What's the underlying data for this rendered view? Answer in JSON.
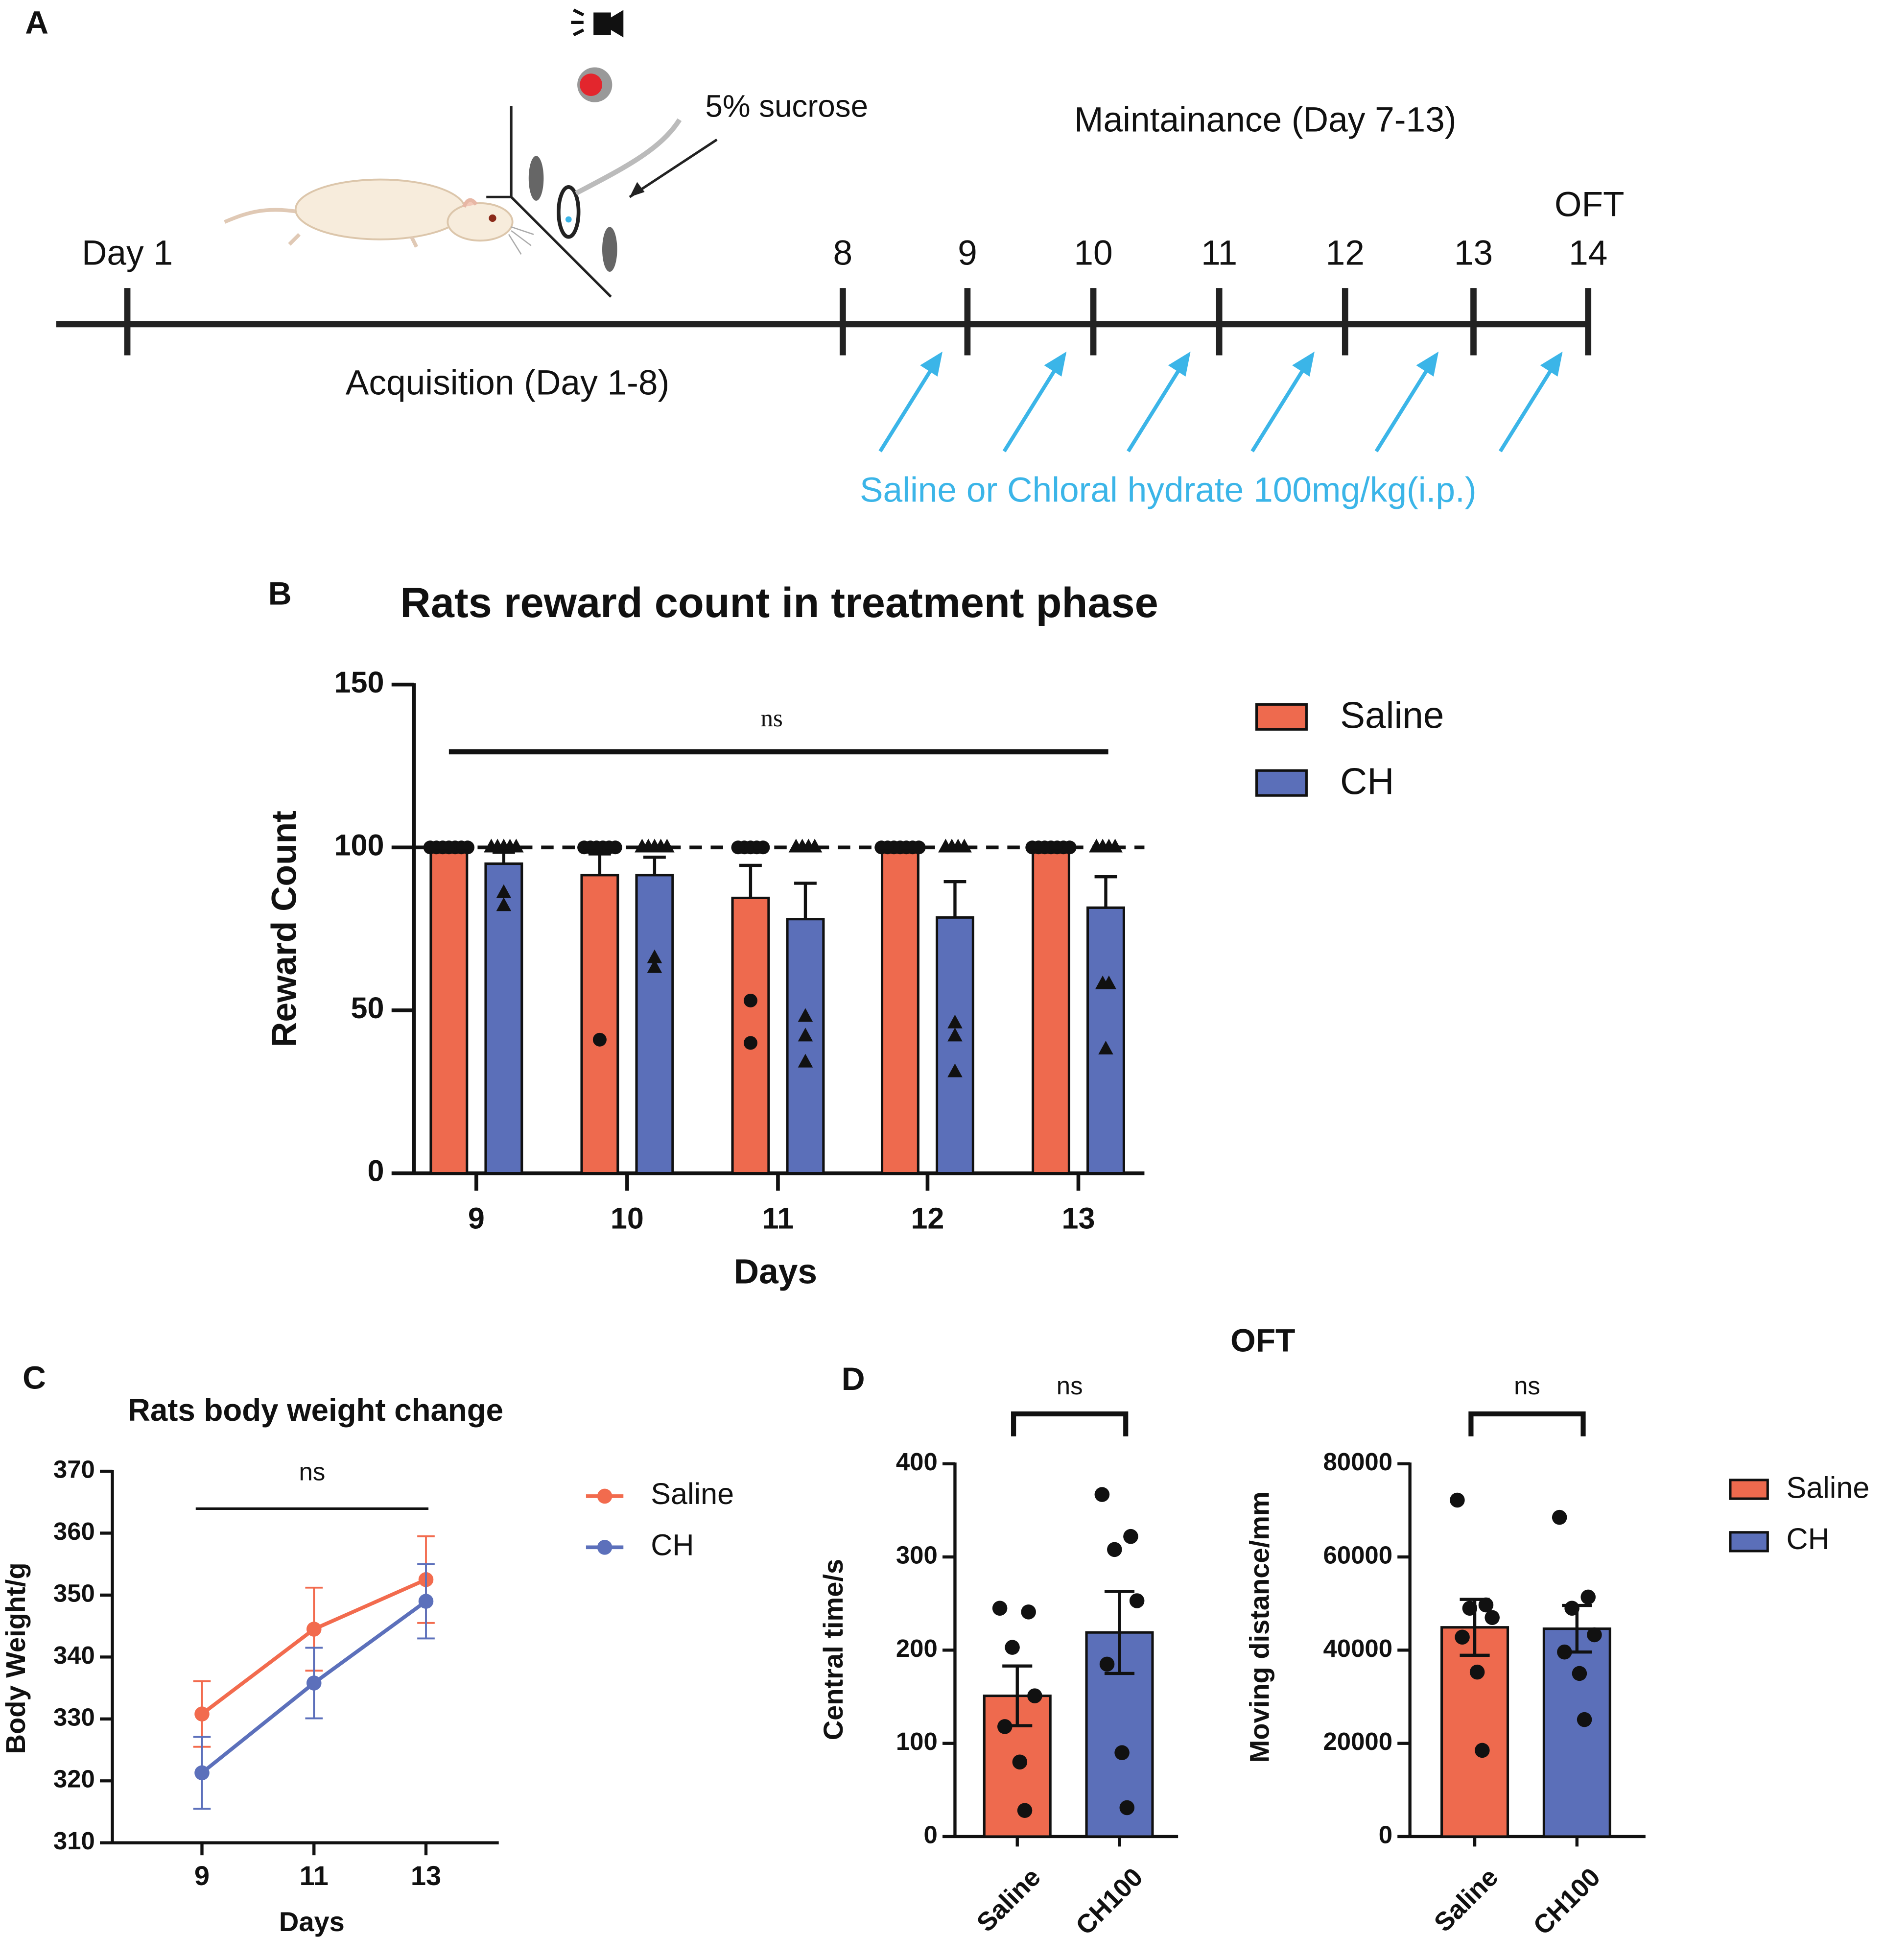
{
  "timeline": {
    "panel": "A",
    "days": [
      "Day 1",
      "8",
      "9",
      "10",
      "11",
      "12",
      "13",
      "14"
    ],
    "end_label": "OFT",
    "maintenance": "Maintainance (Day 7-13)",
    "acquisition": "Acquisition (Day 1-8)",
    "stimulus": "5% sucrose",
    "treatment": "Saline or Chloral hydrate 100mg/kg(i.p.)"
  },
  "chart_data": [
    {
      "panel": "B",
      "type": "bar",
      "title": "Rats reward count in treatment phase",
      "x_label": "Days",
      "y_label": "Reward Count",
      "categories": [
        "9",
        "10",
        "11",
        "12",
        "13"
      ],
      "ylim": [
        0,
        150
      ],
      "yticks": [
        0,
        50,
        100,
        150
      ],
      "reference_line": 100,
      "annotation": "ns",
      "series": [
        {
          "name": "Saline",
          "color": "#ee6a4e",
          "values": [
            100,
            91.5,
            84.5,
            100,
            100
          ],
          "errors": [
            0,
            6.5,
            10,
            0,
            0
          ],
          "points": [
            [
              100,
              100,
              100,
              100,
              100,
              100,
              100
            ],
            [
              100,
              100,
              100,
              100,
              100,
              100,
              41
            ],
            [
              100,
              100,
              100,
              100,
              100,
              53,
              40
            ],
            [
              100,
              100,
              100,
              100,
              100,
              100,
              100
            ],
            [
              100,
              100,
              100,
              100,
              100,
              100,
              100
            ]
          ]
        },
        {
          "name": "CH",
          "color": "#5b6fb9",
          "values": [
            95,
            91.5,
            78,
            78.5,
            81.5
          ],
          "errors": [
            3.5,
            5.5,
            11,
            11,
            9.5
          ],
          "points": [
            [
              100,
              100,
              100,
              100,
              100,
              86,
              82
            ],
            [
              100,
              100,
              100,
              100,
              100,
              66,
              63
            ],
            [
              100,
              100,
              100,
              100,
              48,
              42,
              34
            ],
            [
              100,
              100,
              100,
              100,
              46,
              42,
              31
            ],
            [
              100,
              100,
              100,
              100,
              58,
              58,
              38
            ]
          ]
        }
      ]
    },
    {
      "panel": "C",
      "type": "line",
      "title": "Rats body weight change",
      "x_label": "Days",
      "y_label": "Body Weight/g",
      "x": [
        9,
        11,
        13
      ],
      "xlim": [
        7.4,
        14.3
      ],
      "xticks": [
        9,
        11,
        13
      ],
      "ylim": [
        310,
        370
      ],
      "yticks": [
        310,
        320,
        330,
        340,
        350,
        360,
        370
      ],
      "annotation": "ns",
      "series": [
        {
          "name": "Saline",
          "color": "#f26b4e",
          "values": [
            330.8,
            344.5,
            352.5
          ],
          "errors": [
            5.3,
            6.7,
            7
          ]
        },
        {
          "name": "CH",
          "color": "#5c70bb",
          "values": [
            321.3,
            335.8,
            349
          ],
          "errors": [
            5.8,
            5.7,
            6
          ]
        }
      ]
    },
    {
      "panel": "D",
      "group_title": "OFT",
      "type": "bar",
      "y_label": "Central time/s",
      "categories": [
        "Saline",
        "CH100"
      ],
      "colors": [
        "#ee6a4e",
        "#5b6fb9"
      ],
      "values": [
        151,
        219
      ],
      "errors": [
        32,
        44
      ],
      "points": [
        [
          245,
          241,
          203,
          151,
          118,
          80,
          28
        ],
        [
          367,
          322,
          308,
          253,
          185,
          90,
          31
        ]
      ],
      "ylim": [
        0,
        400
      ],
      "yticks": [
        0,
        100,
        200,
        300,
        400
      ],
      "annotation": "ns"
    },
    {
      "type": "bar",
      "y_label": "Moving distance/mm",
      "categories": [
        "Saline",
        "CH100"
      ],
      "colors": [
        "#ee6a4e",
        "#5b6fb9"
      ],
      "values": [
        44900,
        44600
      ],
      "errors": [
        6000,
        5000
      ],
      "points": [
        [
          72200,
          49700,
          49000,
          47000,
          42800,
          35300,
          18500
        ],
        [
          68500,
          51400,
          49000,
          43300,
          39600,
          35000,
          25100
        ]
      ],
      "ylim": [
        0,
        80000
      ],
      "yticks": [
        0,
        20000,
        40000,
        60000,
        80000
      ],
      "annotation": "ns",
      "legend": [
        {
          "name": "Saline",
          "color": "#ee6a4e"
        },
        {
          "name": "CH",
          "color": "#5b6fb9"
        }
      ]
    }
  ]
}
